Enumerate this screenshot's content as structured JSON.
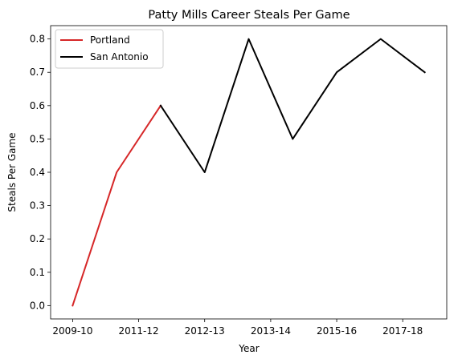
{
  "chart_data": {
    "type": "line",
    "title": "Patty Mills Career Steals Per Game",
    "xlabel": "Year",
    "ylabel": "Steals Per Game",
    "x": [
      0,
      1,
      2,
      3,
      4,
      5,
      6,
      7,
      8
    ],
    "xtick_positions": [
      0,
      1.5,
      3,
      4.5,
      6,
      7.5
    ],
    "xtick_labels": [
      "2009-10",
      "2011-12",
      "2012-13",
      "2013-14",
      "2015-16",
      "2017-18"
    ],
    "xlim": [
      -0.5,
      8.5
    ],
    "ylim": [
      -0.04,
      0.84
    ],
    "yticks": [
      0.0,
      0.1,
      0.2,
      0.3,
      0.4,
      0.5,
      0.6,
      0.7,
      0.8
    ],
    "ytick_labels": [
      "0.0",
      "0.1",
      "0.2",
      "0.3",
      "0.4",
      "0.5",
      "0.6",
      "0.7",
      "0.8"
    ],
    "grid": false,
    "legend_position": "top-left",
    "series": [
      {
        "name": "Portland",
        "color": "#d62728",
        "points": [
          [
            0,
            0.0
          ],
          [
            1,
            0.4
          ],
          [
            2,
            0.6
          ]
        ]
      },
      {
        "name": "San Antonio",
        "color": "#000000",
        "points": [
          [
            2,
            0.6
          ],
          [
            3,
            0.4
          ],
          [
            4,
            0.8
          ],
          [
            5,
            0.5
          ],
          [
            6,
            0.7
          ],
          [
            7,
            0.8
          ],
          [
            8,
            0.7
          ]
        ]
      }
    ]
  }
}
